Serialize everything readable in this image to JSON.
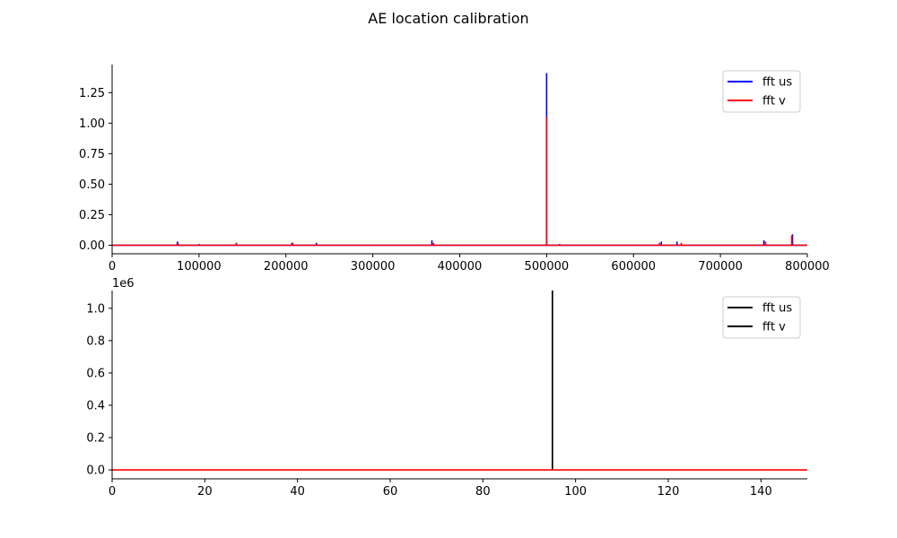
{
  "figure": {
    "title": "AE location calibration"
  },
  "chart_data": [
    {
      "type": "line",
      "title": "",
      "xlabel": "",
      "ylabel": "",
      "xlim": [
        0,
        800000
      ],
      "ylim": [
        -0.07,
        1.48
      ],
      "x_ticks": [
        0,
        100000,
        200000,
        300000,
        400000,
        500000,
        600000,
        700000,
        800000
      ],
      "x_tick_labels": [
        "0",
        "100000",
        "200000",
        "300000",
        "400000",
        "500000",
        "600000",
        "700000",
        "800000"
      ],
      "y_ticks": [
        0.0,
        0.25,
        0.5,
        0.75,
        1.0,
        1.25
      ],
      "y_tick_labels": [
        "0.00",
        "0.25",
        "0.50",
        "0.75",
        "1.00",
        "1.25"
      ],
      "legend": {
        "placement": "top-right",
        "entries": [
          "fft us",
          "fft v"
        ]
      },
      "series": [
        {
          "name": "fft us",
          "color": "#0000ff",
          "x": [
            0,
            75000,
            100000,
            143000,
            207000,
            235000,
            368000,
            500000,
            515000,
            632000,
            650000,
            750000,
            783000,
            800000
          ],
          "y": [
            0.0,
            0.03,
            0.01,
            0.02,
            0.02,
            0.02,
            0.04,
            1.41,
            0.01,
            0.03,
            0.03,
            0.04,
            0.09,
            0.0
          ]
        },
        {
          "name": "fft v",
          "color": "#ff0000",
          "x": [
            0,
            76000,
            143000,
            208000,
            370000,
            500000,
            630000,
            655000,
            752000,
            782000,
            800000
          ],
          "y": [
            0.0,
            0.02,
            0.02,
            0.02,
            0.02,
            1.05,
            0.02,
            0.02,
            0.03,
            0.08,
            0.0
          ]
        }
      ]
    },
    {
      "type": "line",
      "title": "",
      "xlabel": "",
      "ylabel": "",
      "offset_text": "1e6",
      "xlim": [
        0,
        150
      ],
      "ylim": [
        -0.055,
        1.11
      ],
      "x_ticks": [
        0,
        20,
        40,
        60,
        80,
        100,
        120,
        140
      ],
      "x_tick_labels": [
        "0",
        "20",
        "40",
        "60",
        "80",
        "100",
        "120",
        "140"
      ],
      "y_ticks": [
        0.0,
        0.2,
        0.4,
        0.6,
        0.8,
        1.0
      ],
      "y_tick_labels": [
        "0.0",
        "0.2",
        "0.4",
        "0.6",
        "0.8",
        "1.0"
      ],
      "legend": {
        "placement": "top-right",
        "entries": [
          "fft us",
          "fft v"
        ]
      },
      "series": [
        {
          "name": "fft us",
          "color": "#000000",
          "x": [
            95,
            95
          ],
          "y": [
            0.0,
            1.11
          ]
        },
        {
          "name": "fft v",
          "color": "#000000",
          "x": [
            95,
            95
          ],
          "y": [
            0.0,
            1.11
          ]
        },
        {
          "name": "",
          "color": "#ff0000",
          "x": [
            0,
            150
          ],
          "y": [
            0.0,
            0.0
          ]
        }
      ]
    }
  ]
}
